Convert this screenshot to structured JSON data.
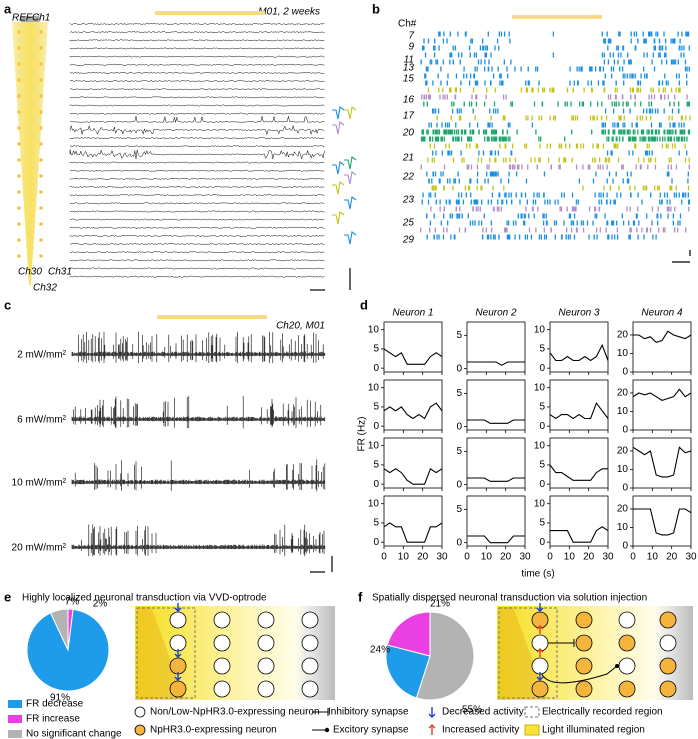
{
  "panels": {
    "a": {
      "label": "a",
      "title": "M01, 2 weeks",
      "site_labels": [
        "REF",
        "Ch1",
        "Ch30",
        "Ch31",
        "Ch32"
      ]
    },
    "b": {
      "label": "b",
      "header": "Ch#",
      "channels": [
        "7",
        "9",
        "11",
        "13",
        "15",
        "16",
        "17",
        "20",
        "21",
        "22",
        "23",
        "25",
        "29"
      ]
    },
    "c": {
      "label": "c",
      "title": "Ch20, M01",
      "powers": [
        "2 mW/mm²",
        "6 mW/mm²",
        "10 mW/mm²",
        "20 mW/mm²"
      ]
    },
    "d": {
      "label": "d"
    },
    "e": {
      "label": "e"
    },
    "f": {
      "label": "f"
    }
  },
  "chart_data": [
    {
      "type": "line-grid",
      "xlabel": "time (s)",
      "ylabel": "FR (Hz)",
      "x": [
        0,
        3,
        6,
        9,
        12,
        15,
        18,
        21,
        24,
        27,
        30
      ],
      "xlim": [
        0,
        30
      ],
      "xticks": [
        0,
        10,
        20,
        30
      ],
      "panels": [
        {
          "title": "Neuron 1",
          "color": "#1a8fe3",
          "ylim": [
            -1,
            12
          ],
          "yticks": [
            0,
            5,
            10
          ],
          "series": [
            {
              "values": [
                5,
                4,
                3,
                4,
                1,
                1,
                1,
                1,
                3,
                4,
                3
              ]
            },
            {
              "values": [
                4,
                5,
                4,
                5,
                3,
                2,
                3,
                2,
                5,
                6,
                4
              ]
            },
            {
              "values": [
                4,
                3,
                4,
                3,
                1,
                0,
                0,
                0,
                4,
                3,
                4
              ]
            },
            {
              "values": [
                4,
                5,
                4,
                4,
                0,
                0,
                0,
                0,
                4,
                4,
                5
              ]
            }
          ]
        },
        {
          "title": "Neuron 2",
          "color": "#c4c41c",
          "ylim": [
            -0.5,
            7
          ],
          "yticks": [
            0,
            5
          ],
          "series": [
            {
              "values": [
                1,
                1,
                1,
                1,
                1,
                1,
                0.5,
                1,
                1,
                1,
                1
              ]
            },
            {
              "values": [
                1,
                1,
                1,
                1,
                0.5,
                0.5,
                0.5,
                0.5,
                1,
                1,
                1
              ]
            },
            {
              "values": [
                1,
                1,
                1,
                1,
                0.5,
                0.5,
                0.5,
                0.5,
                1,
                1,
                1
              ]
            },
            {
              "values": [
                1,
                1,
                1,
                1,
                0,
                0,
                0,
                0,
                1,
                1,
                1
              ]
            }
          ]
        },
        {
          "title": "Neuron 3",
          "color": "#b08cc9",
          "ylim": [
            -1,
            12
          ],
          "yticks": [
            0,
            5,
            10
          ],
          "series": [
            {
              "values": [
                4,
                2,
                2,
                3,
                2,
                2,
                3,
                2,
                3,
                6,
                2
              ]
            },
            {
              "values": [
                3,
                2,
                3,
                3,
                2,
                3,
                2,
                2,
                6,
                4,
                2
              ]
            },
            {
              "values": [
                5,
                3,
                3,
                2,
                1,
                1,
                1,
                1,
                3,
                4,
                4
              ]
            },
            {
              "values": [
                3,
                3,
                3,
                3,
                0,
                0,
                0,
                0,
                3,
                4,
                3
              ]
            }
          ]
        },
        {
          "title": "Neuron 4",
          "color": "#1fa66b",
          "ylim": [
            0,
            27
          ],
          "yticks": [
            0,
            10,
            20
          ],
          "series": [
            {
              "values": [
                20,
                20,
                18,
                19,
                16,
                17,
                22,
                20,
                19,
                18,
                20
              ]
            },
            {
              "values": [
                18,
                20,
                19,
                20,
                18,
                16,
                17,
                18,
                22,
                18,
                20
              ]
            },
            {
              "values": [
                22,
                20,
                18,
                20,
                7,
                6,
                6,
                7,
                22,
                19,
                20
              ]
            },
            {
              "values": [
                20,
                20,
                20,
                20,
                7,
                6,
                6,
                7,
                20,
                20,
                18
              ]
            }
          ]
        }
      ]
    },
    {
      "type": "pie",
      "title": "Highly localized neuronal transduction via VVD-optrode",
      "categories": [
        "FR decrease",
        "FR increase",
        "No significant change"
      ],
      "values": [
        91,
        2,
        7
      ],
      "value_labels": [
        "91%",
        "2%",
        "7%"
      ],
      "colors": [
        "#1e9be9",
        "#ea3fe3",
        "#b3b3b3"
      ]
    },
    {
      "type": "pie",
      "title": "Spatially dispersed neuronal transduction via solution injection",
      "categories": [
        "FR decrease",
        "FR increase",
        "No significant change"
      ],
      "values": [
        24,
        21,
        55
      ],
      "value_labels": [
        "24%",
        "21%",
        "55%"
      ],
      "colors": [
        "#1e9be9",
        "#ea3fe3",
        "#b3b3b3"
      ]
    }
  ],
  "legend": {
    "items": [
      "Non/Low-NpHR3.0-expressing neuron",
      "NpHR3.0-expressing neuron",
      "Inhibitory synapse",
      "Excitory synapse",
      "Decreased activity",
      "Increased activity",
      "Electrically recorded region",
      "Light illuminated region"
    ]
  }
}
